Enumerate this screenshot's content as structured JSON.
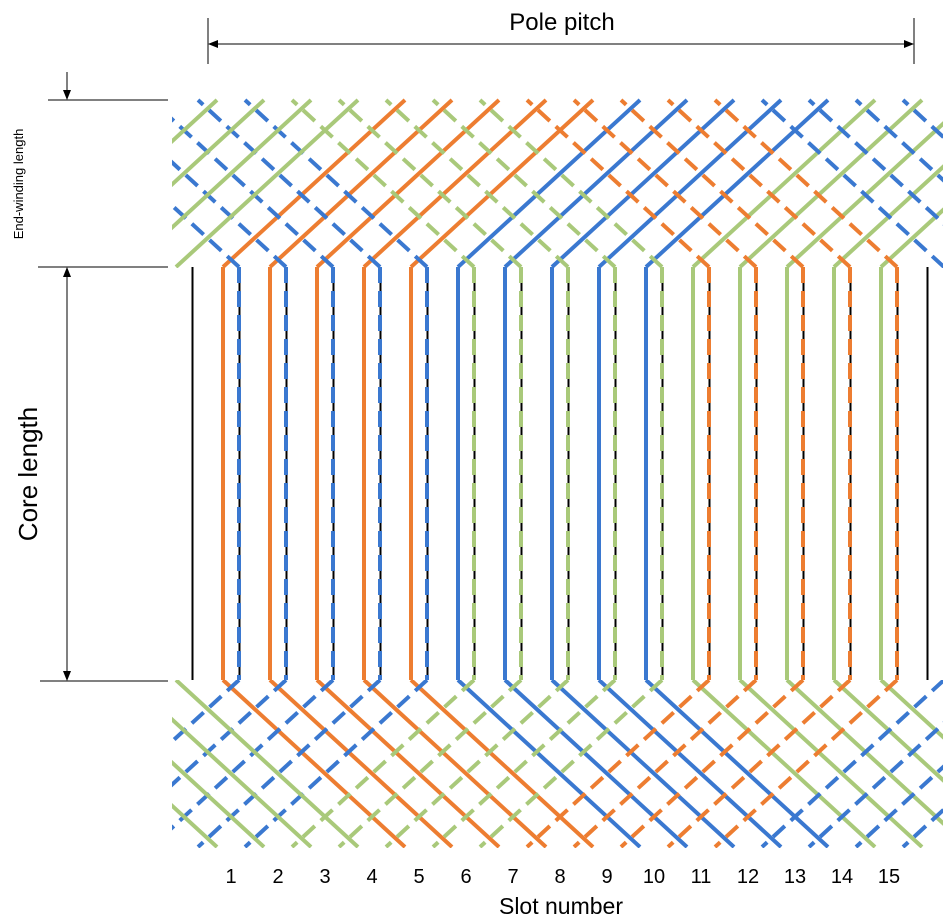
{
  "labels": {
    "pole_pitch": "Pole pitch",
    "end_winding_length": "End-winding length",
    "core_length": "Core length",
    "slot_number_axis": "Slot number"
  },
  "slot_numbers": [
    "1",
    "2",
    "3",
    "4",
    "5",
    "6",
    "7",
    "8",
    "9",
    "10",
    "11",
    "12",
    "13",
    "14",
    "15"
  ],
  "colors": {
    "phase_orange": "#ED7D31",
    "phase_blue": "#3A78D0",
    "phase_green": "#A9C97A",
    "slot_line": "#000000",
    "dimension_line": "#000000"
  },
  "winding_pattern": {
    "solid_conductors": [
      "orange",
      "orange",
      "orange",
      "orange",
      "orange",
      "blue",
      "blue",
      "blue",
      "blue",
      "blue",
      "green",
      "green",
      "green",
      "green",
      "green"
    ],
    "dashed_conductors": [
      "blue",
      "blue",
      "blue",
      "blue",
      "blue",
      "green",
      "green",
      "green",
      "green",
      "green",
      "orange",
      "orange",
      "orange",
      "orange",
      "orange"
    ]
  }
}
